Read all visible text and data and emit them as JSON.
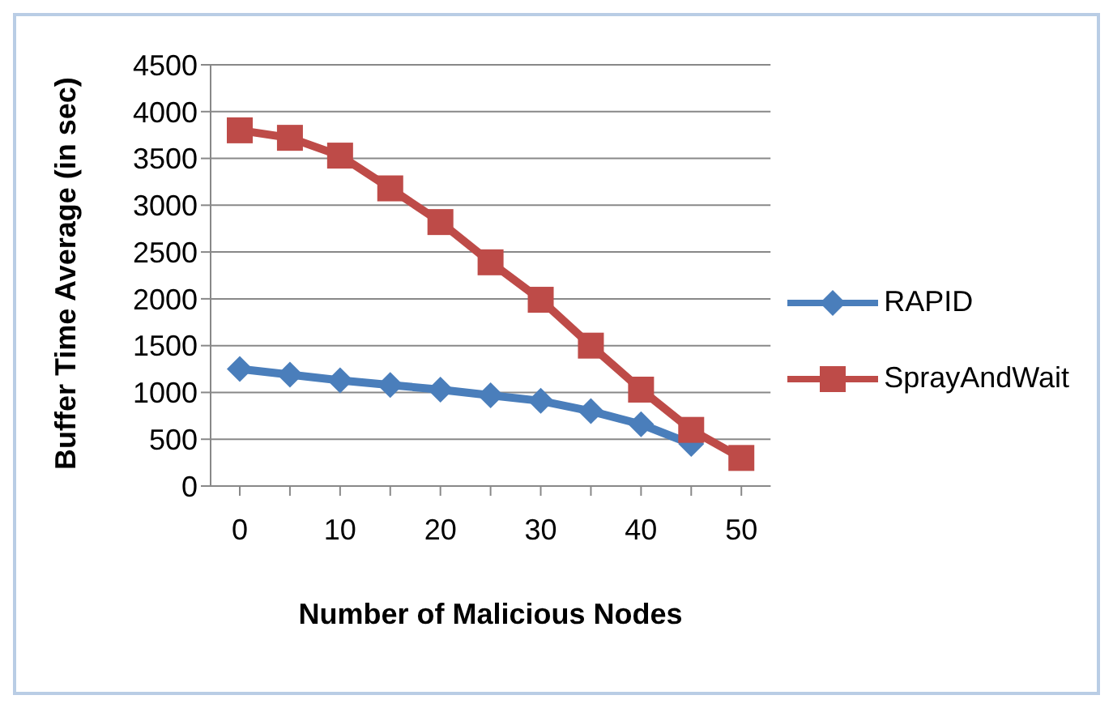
{
  "chart_data": {
    "type": "line",
    "xlabel": "Number of Malicious Nodes",
    "ylabel": "Buffer Time Average (in sec)",
    "categories": [
      "0",
      null,
      "10",
      null,
      "20",
      null,
      "30",
      null,
      "40",
      null,
      "50"
    ],
    "series": [
      {
        "name": "RAPID",
        "color": "#4a7ebb",
        "values": [
          1250,
          1190,
          1130,
          1080,
          1030,
          970,
          910,
          800,
          660,
          450,
          null
        ],
        "marker": "diamond"
      },
      {
        "name": "SprayAndWait",
        "color": "#be4b48",
        "values": [
          3800,
          3720,
          3530,
          3180,
          2820,
          2390,
          1990,
          1500,
          1030,
          600,
          300
        ],
        "marker": "square"
      }
    ],
    "ylim": [
      0,
      4500
    ],
    "yticks": [
      0,
      500,
      1000,
      1500,
      2000,
      2500,
      3000,
      3500,
      4000,
      4500
    ],
    "grid": "y",
    "legend": "right"
  }
}
